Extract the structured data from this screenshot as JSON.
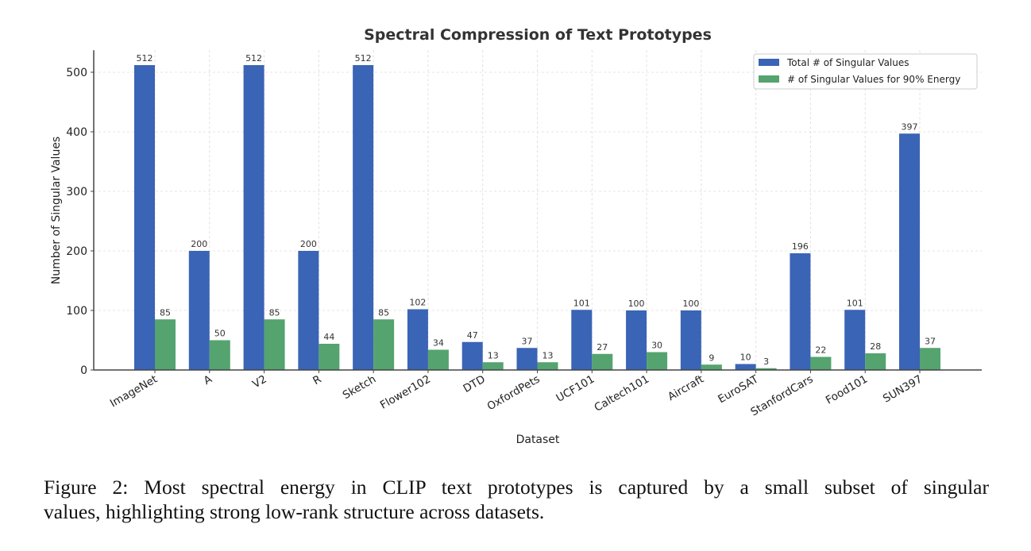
{
  "chart_data": {
    "type": "bar",
    "title": "Spectral Compression of Text Prototypes",
    "xlabel": "Dataset",
    "ylabel": "Number of Singular Values",
    "ylim": [
      0,
      537
    ],
    "yticks": [
      0,
      100,
      200,
      300,
      400,
      500
    ],
    "grid": true,
    "legend_position": "top-right",
    "categories": [
      "ImageNet",
      "A",
      "V2",
      "R",
      "Sketch",
      "Flower102",
      "DTD",
      "OxfordPets",
      "UCF101",
      "Caltech101",
      "Aircraft",
      "EuroSAT",
      "StanfordCars",
      "Food101",
      "SUN397"
    ],
    "series": [
      {
        "name": "Total # of Singular Values",
        "color": "#3a64b5",
        "values": [
          512,
          200,
          512,
          200,
          512,
          102,
          47,
          37,
          101,
          100,
          100,
          10,
          196,
          101,
          397
        ]
      },
      {
        "name": "# of Singular Values for 90% Energy",
        "color": "#55a36f",
        "values": [
          85,
          50,
          85,
          44,
          85,
          34,
          13,
          13,
          27,
          30,
          9,
          3,
          22,
          28,
          37
        ]
      }
    ]
  },
  "caption": {
    "line1": "Figure 2: Most spectral energy in CLIP text prototypes is captured by a small subset of singular",
    "line2": "values, highlighting strong low-rank structure across datasets."
  }
}
